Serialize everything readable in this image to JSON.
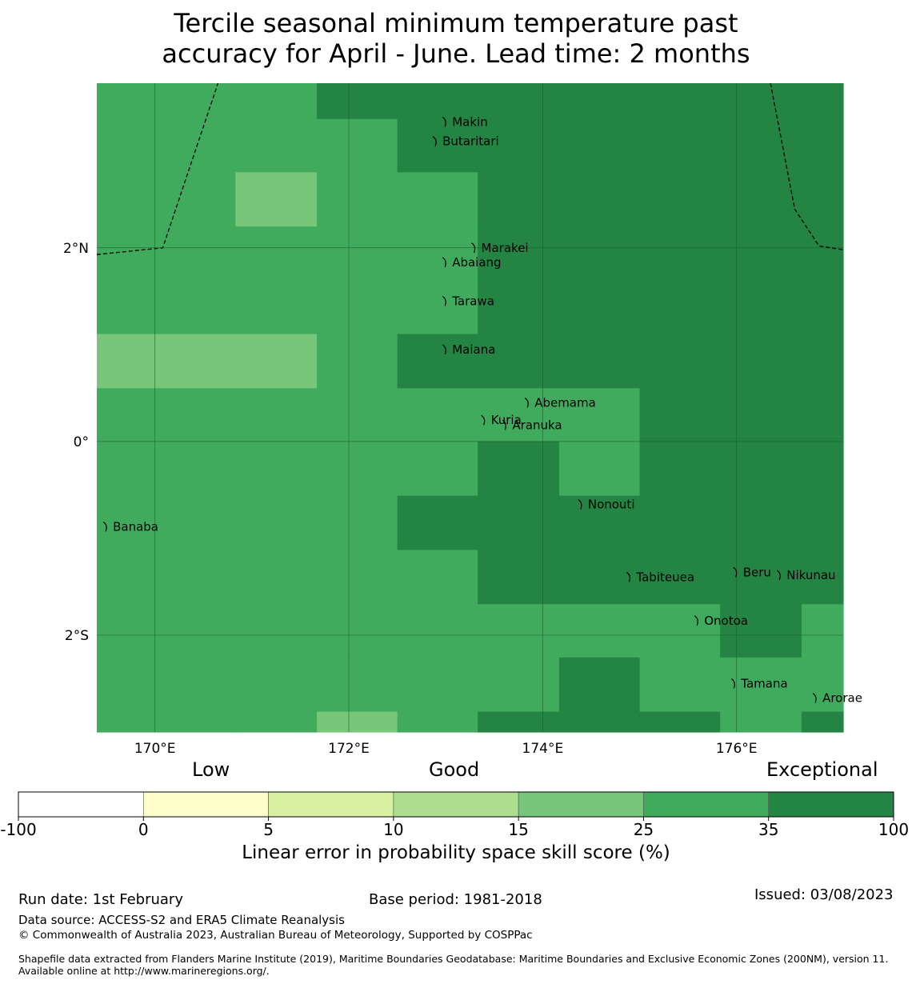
{
  "title": {
    "line1": "Tercile seasonal minimum temperature past",
    "line2": "accuracy for April - June. Lead time: 2 months"
  },
  "map": {
    "lon_range": [
      169.4,
      177.1
    ],
    "lat_range": [
      -3.0,
      3.7
    ],
    "lon_ticks": [
      {
        "value": 170,
        "label": "170°E"
      },
      {
        "value": 172,
        "label": "172°E"
      },
      {
        "value": 174,
        "label": "174°E"
      },
      {
        "value": 176,
        "label": "176°E"
      }
    ],
    "lat_ticks": [
      {
        "value": 2,
        "label": "2°N"
      },
      {
        "value": 0,
        "label": "0°"
      },
      {
        "value": -2,
        "label": "2°S"
      }
    ],
    "grid_cells": {
      "lon_edges": [
        169.4,
        170.0,
        170.83,
        171.67,
        172.5,
        173.33,
        174.17,
        175.0,
        175.83,
        176.67,
        177.1
      ],
      "lat_edges": [
        3.7,
        3.33,
        2.78,
        2.22,
        1.67,
        1.11,
        0.55,
        0.0,
        -0.56,
        -1.12,
        -1.68,
        -2.23,
        -2.79,
        -3.0
      ],
      "category_colors": [
        "#ffffff",
        "#ffffcc",
        "#d9f0a3",
        "#addd8e",
        "#78c679",
        "#41ab5d",
        "#238443"
      ],
      "rows": [
        [
          5,
          5,
          5,
          6,
          6,
          6,
          6,
          6,
          6,
          6
        ],
        [
          5,
          5,
          5,
          5,
          6,
          6,
          6,
          6,
          6,
          6
        ],
        [
          5,
          5,
          4,
          5,
          5,
          6,
          6,
          6,
          6,
          6
        ],
        [
          5,
          5,
          5,
          5,
          5,
          6,
          6,
          6,
          6,
          6
        ],
        [
          5,
          5,
          5,
          5,
          5,
          6,
          6,
          6,
          6,
          6
        ],
        [
          4,
          4,
          4,
          5,
          6,
          6,
          6,
          6,
          6,
          6
        ],
        [
          5,
          5,
          5,
          5,
          5,
          5,
          5,
          6,
          6,
          6
        ],
        [
          5,
          5,
          5,
          5,
          5,
          6,
          5,
          6,
          6,
          6
        ],
        [
          5,
          5,
          5,
          5,
          6,
          6,
          6,
          6,
          6,
          6
        ],
        [
          5,
          5,
          5,
          5,
          5,
          6,
          6,
          6,
          6,
          6
        ],
        [
          5,
          5,
          5,
          5,
          5,
          5,
          5,
          5,
          6,
          5
        ],
        [
          5,
          5,
          5,
          5,
          5,
          5,
          6,
          5,
          5,
          5
        ],
        [
          5,
          5,
          5,
          4,
          5,
          6,
          6,
          6,
          5,
          6
        ]
      ]
    },
    "boundaries": [
      [
        [
          169.4,
          1.93
        ],
        [
          170.08,
          2.0
        ],
        [
          170.65,
          3.7
        ]
      ],
      [
        [
          176.35,
          3.7
        ],
        [
          176.6,
          2.4
        ],
        [
          176.85,
          2.02
        ],
        [
          177.1,
          1.98
        ]
      ]
    ],
    "islands": [
      {
        "name": "Makin",
        "lon": 173.0,
        "lat": 3.3
      },
      {
        "name": "Butaritari",
        "lon": 172.9,
        "lat": 3.1
      },
      {
        "name": "Marakei",
        "lon": 173.3,
        "lat": 2.0
      },
      {
        "name": "Abaiang",
        "lon": 173.0,
        "lat": 1.85
      },
      {
        "name": "Tarawa",
        "lon": 173.0,
        "lat": 1.45
      },
      {
        "name": "Maiana",
        "lon": 173.0,
        "lat": 0.95
      },
      {
        "name": "Abemama",
        "lon": 173.85,
        "lat": 0.4
      },
      {
        "name": "Kuria",
        "lon": 173.4,
        "lat": 0.22
      },
      {
        "name": "Aranuka",
        "lon": 173.62,
        "lat": 0.17
      },
      {
        "name": "Nonouti",
        "lon": 174.4,
        "lat": -0.65
      },
      {
        "name": "Banaba",
        "lon": 169.5,
        "lat": -0.88
      },
      {
        "name": "Tabiteuea",
        "lon": 174.9,
        "lat": -1.4
      },
      {
        "name": "Beru",
        "lon": 176.0,
        "lat": -1.35
      },
      {
        "name": "Nikunau",
        "lon": 176.45,
        "lat": -1.38
      },
      {
        "name": "Onotoa",
        "lon": 175.6,
        "lat": -1.85
      },
      {
        "name": "Tamana",
        "lon": 175.98,
        "lat": -2.5
      },
      {
        "name": "Arorae",
        "lon": 176.82,
        "lat": -2.65
      }
    ]
  },
  "colorbar": {
    "categories": [
      "Low",
      "Good",
      "Exceptional"
    ],
    "ticks": [
      "-100",
      "0",
      "5",
      "10",
      "15",
      "25",
      "35",
      "100"
    ],
    "colors": [
      "#ffffff",
      "#ffffcc",
      "#d9f0a3",
      "#addd8e",
      "#78c679",
      "#41ab5d",
      "#238443"
    ],
    "label": "Linear error in probability space skill score (%)"
  },
  "footer": {
    "run_date": "Run date: 1st February",
    "base_period": "Base period: 1981-2018",
    "issued": "Issued: 03/08/2023",
    "data_source": "Data source: ACCESS-S2 and ERA5 Climate Reanalysis",
    "copyright": "© Commonwealth of Australia 2023, Australian Bureau of Meteorology, Supported by COSPPac",
    "shapefile": "Shapefile data extracted from Flanders Marine Institute (2019), Maritime Boundaries Geodatabase: Maritime Boundaries and Exclusive Economic Zones (200NM), version 11. Available online at http://www.marineregions.org/."
  }
}
